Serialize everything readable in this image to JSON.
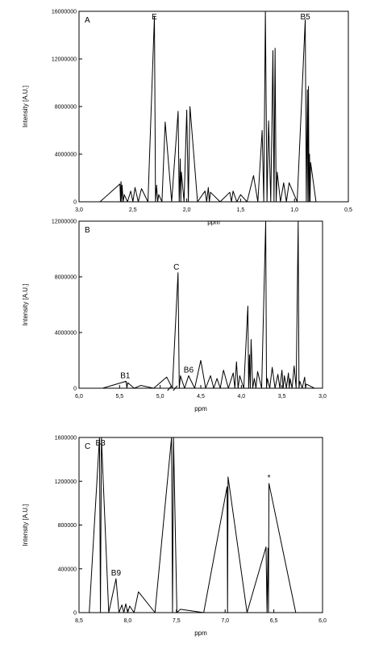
{
  "chart_data": [
    {
      "type": "line",
      "panel_label": "A",
      "xlabel": "ppm",
      "ylabel": "Intensity [A.U.]",
      "xlim": [
        3.0,
        0.5
      ],
      "ylim": [
        0,
        16000000
      ],
      "x_ticks": [
        3.0,
        2.5,
        2.0,
        1.5,
        1.0,
        0.5
      ],
      "x_tick_labels": [
        "3,0",
        "2,5",
        "2,0",
        "1,5",
        "1,0",
        "0,5"
      ],
      "y_ticks": [
        0,
        4000000,
        8000000,
        12000000,
        16000000
      ],
      "y_tick_labels": [
        "0",
        "4000000",
        "8000000",
        "12000000",
        "16000000"
      ],
      "x_axis_break": null,
      "series": [
        {
          "x": [
            2.99,
            2.62,
            2.61,
            2.6,
            2.58,
            2.52,
            2.48,
            2.42,
            2.3,
            2.28,
            2.26,
            2.2,
            2.08,
            2.06,
            2.05,
            2.0,
            1.97,
            1.83,
            1.8,
            1.78,
            1.6,
            1.57,
            1.5,
            1.38,
            1.3,
            1.27,
            1.24,
            1.2,
            1.18,
            1.16,
            1.1,
            1.05,
            0.9,
            0.88,
            0.87,
            0.86,
            0.85,
            0.75,
            0.55
          ],
          "y": [
            0,
            1500000,
            1700000,
            1400000,
            600000,
            900000,
            1200000,
            1100000,
            15600000,
            1400000,
            600000,
            6700000,
            7600000,
            3600000,
            2500000,
            7700000,
            8000000,
            900000,
            1200000,
            800000,
            800000,
            900000,
            600000,
            2200000,
            6000000,
            16000000,
            6800000,
            12700000,
            12900000,
            2500000,
            1600000,
            1600000,
            15300000,
            9400000,
            9700000,
            4000000,
            3300000,
            0,
            0
          ]
        }
      ],
      "annotations": [
        {
          "text": "E",
          "x": 2.3
        },
        {
          "text": "B5",
          "x": 0.9
        }
      ]
    },
    {
      "type": "line",
      "panel_label": "B",
      "xlabel": "ppm",
      "ylabel": "Intensity [A.U.]",
      "xlim": [
        6.0,
        3.0
      ],
      "ylim": [
        0,
        12000000
      ],
      "x_ticks": [
        6.0,
        5.5,
        5.0,
        4.5,
        4.0,
        3.5,
        3.0
      ],
      "x_tick_labels": [
        "6,0",
        "5,5",
        "5,0",
        "4,5",
        "4,0",
        "3,5",
        "3,0"
      ],
      "y_ticks": [
        0,
        4000000,
        8000000,
        12000000
      ],
      "y_tick_labels": [
        "0",
        "4000000",
        "8000000",
        "12000000"
      ],
      "x_axis_break": 4.85,
      "series": [
        {
          "x": [
            6.0,
            5.42,
            5.4,
            5.24,
            4.92,
            4.78,
            4.75,
            4.65,
            4.5,
            4.38,
            4.3,
            4.22,
            4.1,
            4.06,
            4.02,
            3.92,
            3.9,
            3.88,
            3.84,
            3.8,
            3.7,
            3.68,
            3.62,
            3.55,
            3.5,
            3.47,
            3.42,
            3.4,
            3.35,
            3.3,
            3.28,
            3.22,
            3.2,
            3.0
          ],
          "y": [
            0,
            500000,
            400000,
            200000,
            800000,
            8300000,
            900000,
            900000,
            2000000,
            900000,
            700000,
            1300000,
            1100000,
            1900000,
            900000,
            5900000,
            2400000,
            3500000,
            700000,
            1200000,
            12000000,
            700000,
            1500000,
            1000000,
            1300000,
            900000,
            1100000,
            700000,
            1600000,
            12000000,
            500000,
            800000,
            300000,
            0
          ]
        }
      ],
      "annotations": [
        {
          "text": "C",
          "x": 4.8
        },
        {
          "text": "B1",
          "x": 5.43
        },
        {
          "text": "B6",
          "x": 4.65
        }
      ]
    },
    {
      "type": "line",
      "panel_label": "C",
      "xlabel": "ppm",
      "ylabel": "Intensity [A.U.]",
      "xlim": [
        8.5,
        6.0
      ],
      "ylim": [
        0,
        1600000
      ],
      "x_ticks": [
        8.5,
        8.0,
        7.5,
        7.0,
        6.5,
        6.0
      ],
      "x_tick_labels": [
        "8,5",
        "8,0",
        "7,5",
        "7,0",
        "6,5",
        "6,0"
      ],
      "y_ticks": [
        0,
        400000,
        800000,
        1200000,
        1600000
      ],
      "y_tick_labels": [
        "0",
        "400000",
        "800000",
        "1200000",
        "1600000"
      ],
      "x_axis_break": null,
      "series": [
        {
          "x": [
            8.5,
            8.29,
            8.27,
            8.12,
            8.06,
            8.02,
            7.98,
            7.89,
            7.55,
            7.53,
            7.46,
            6.98,
            6.97,
            6.58,
            6.56,
            6.55,
            6.0
          ],
          "y": [
            0,
            1600000,
            1600000,
            310000,
            70000,
            80000,
            60000,
            190000,
            1600000,
            1600000,
            30000,
            1150000,
            1240000,
            600000,
            590000,
            1180000,
            0
          ]
        }
      ],
      "annotations": [
        {
          "text": "B3",
          "x": 8.28
        },
        {
          "text": "B9",
          "x": 8.12
        },
        {
          "text": "*",
          "x": 6.55
        }
      ]
    }
  ]
}
